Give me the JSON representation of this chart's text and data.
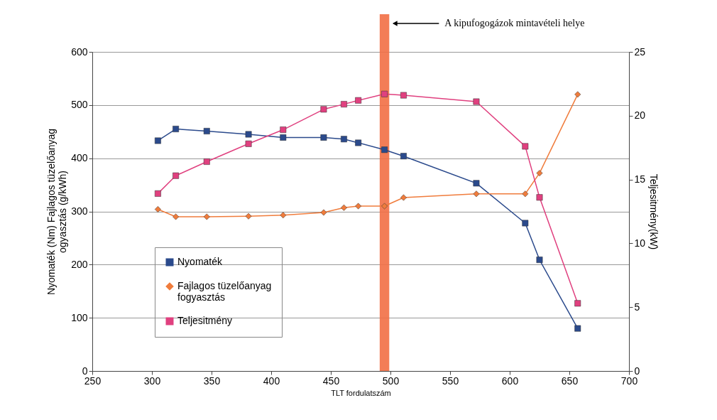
{
  "chart_data": {
    "type": "line",
    "xlabel": "TLT fordulatszám",
    "ylabel": "Nyomaték (Nm) Fajlagos tüzelőanyag ogyasztás (g/kWh)",
    "y2label": "Teljesitmény(kW)",
    "x": [
      305,
      320,
      346,
      381,
      410,
      444,
      461,
      473,
      495,
      511,
      572,
      613,
      625,
      657
    ],
    "series": [
      {
        "name": "Nyomaték",
        "color": "#2b4a8c",
        "marker": "square",
        "values": [
          433,
          455,
          451,
          445,
          439,
          439,
          436,
          429,
          416,
          404,
          353,
          278,
          209,
          80
        ]
      },
      {
        "name": "Fajlagos tüzelőanyag fogyasztás",
        "color": "#f07c3c",
        "marker": "diamond",
        "values": [
          304,
          290,
          290,
          291,
          293,
          298,
          307,
          310,
          310,
          326,
          333,
          333,
          372,
          520
        ]
      },
      {
        "name": "Teljesitmény",
        "color": "#e0407f",
        "marker": "square",
        "axis": "y2",
        "values": [
          13.9,
          15.3,
          16.4,
          17.8,
          18.9,
          20.5,
          20.9,
          21.2,
          21.7,
          21.6,
          21.1,
          17.6,
          13.6,
          5.3
        ]
      }
    ],
    "xlim": [
      250,
      700
    ],
    "xticks": [
      250,
      300,
      350,
      400,
      450,
      500,
      550,
      600,
      650,
      700
    ],
    "ylim": [
      0,
      600
    ],
    "yticks": [
      0,
      100,
      200,
      300,
      400,
      500,
      600
    ],
    "y2lim": [
      0,
      25
    ],
    "y2ticks": [
      0,
      5,
      10,
      15,
      20,
      25
    ],
    "bands": [
      {
        "axis": "x",
        "from": 491,
        "to": 499,
        "label": "A kipufogogázok mintavételi helye",
        "color": "#f26f45"
      }
    ],
    "grid": "y",
    "legend": "bottom left",
    "line_style": "solid"
  }
}
